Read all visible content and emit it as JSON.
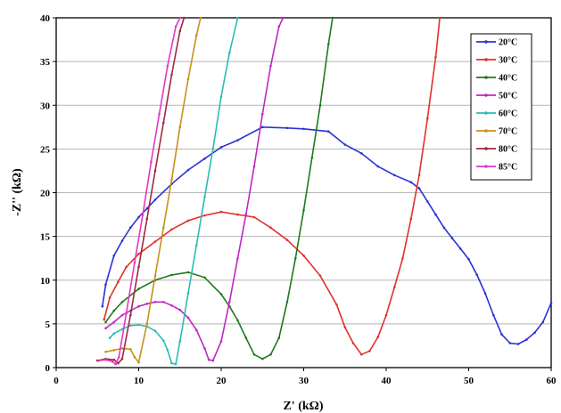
{
  "chart_data": {
    "type": "line",
    "title": "",
    "xlabel": "Z' (kΩ)",
    "ylabel": "-Z'' (kΩ)",
    "xlim": [
      0,
      60
    ],
    "ylim": [
      0,
      40
    ],
    "x_ticks": [
      "0",
      "10",
      "20",
      "30",
      "40",
      "50",
      "60"
    ],
    "y_ticks": [
      "0",
      "5",
      "10",
      "15",
      "20",
      "25",
      "30",
      "35",
      "40"
    ],
    "grid": "horizontal",
    "legend_position": "top-right",
    "series": [
      {
        "name": "20°C",
        "color": "#2a32d6",
        "x": [
          5.6,
          6,
          7,
          8,
          9,
          10,
          11,
          12,
          14,
          16,
          18,
          20,
          22,
          25,
          28,
          30,
          33,
          35,
          37,
          39,
          41,
          43,
          44,
          45,
          46,
          47,
          48,
          49,
          50,
          51,
          52,
          53,
          54,
          55,
          56,
          57,
          58,
          59,
          60
        ],
        "y": [
          7,
          9.5,
          12.8,
          14.5,
          16,
          17.2,
          18.2,
          19.2,
          21,
          22.6,
          23.9,
          25.2,
          26,
          27.5,
          27.4,
          27.3,
          27,
          25.5,
          24.5,
          23,
          22,
          21.2,
          20.5,
          19,
          17.5,
          16,
          14.8,
          13.6,
          12.4,
          10.6,
          8.5,
          6,
          3.8,
          2.8,
          2.7,
          3.2,
          4,
          5.2,
          7.4
        ]
      },
      {
        "name": "30°C",
        "color": "#e0312b",
        "x": [
          5.8,
          6.5,
          7.5,
          8.5,
          10,
          12,
          14,
          16,
          18,
          20,
          22,
          24,
          26,
          28,
          30,
          32,
          34,
          35,
          36,
          37,
          38,
          39,
          40,
          41,
          42,
          43,
          44,
          45,
          46,
          46.5
        ],
        "y": [
          5.5,
          8,
          9.8,
          11.5,
          13,
          14.4,
          15.8,
          16.8,
          17.4,
          17.8,
          17.5,
          17.2,
          16,
          14.6,
          12.8,
          10.5,
          7.2,
          4.6,
          2.8,
          1.5,
          1.9,
          3.5,
          6,
          9.2,
          12.5,
          17,
          22,
          28.5,
          35.5,
          40
        ]
      },
      {
        "name": "40°C",
        "color": "#1e7a1e",
        "x": [
          6,
          7,
          8,
          10,
          12,
          14,
          16,
          18,
          20,
          21,
          22,
          23,
          24,
          25,
          26,
          27,
          28,
          29,
          30,
          31,
          32,
          33,
          33.5
        ],
        "y": [
          5.2,
          6.5,
          7.5,
          9,
          10,
          10.6,
          10.9,
          10.3,
          8.4,
          7,
          5.4,
          3.4,
          1.5,
          1,
          1.5,
          3.4,
          7.5,
          12.5,
          18,
          24,
          30,
          37,
          40
        ]
      },
      {
        "name": "50°C",
        "color": "#c027c5",
        "x": [
          6,
          7,
          8,
          9,
          10,
          11,
          12,
          13,
          14,
          15,
          16,
          17,
          18,
          18.5,
          19,
          20,
          21,
          22,
          23,
          24,
          25,
          26,
          27,
          27.5
        ],
        "y": [
          4.5,
          5.2,
          6,
          6.5,
          7,
          7.3,
          7.5,
          7.5,
          7.1,
          6.6,
          5.7,
          4.3,
          2.2,
          0.9,
          0.8,
          3,
          7.5,
          12.5,
          17.5,
          23,
          29,
          34.5,
          39,
          40
        ]
      },
      {
        "name": "60°C",
        "color": "#2bbbb5",
        "x": [
          6.5,
          7,
          8,
          9,
          10,
          11,
          12,
          13,
          13.5,
          14,
          14.5,
          15,
          16,
          17,
          18,
          19,
          20,
          21,
          22
        ],
        "y": [
          3.4,
          3.9,
          4.4,
          4.8,
          4.9,
          4.7,
          4.2,
          3.1,
          2,
          0.5,
          0.4,
          3,
          8.5,
          14,
          19.5,
          25,
          31,
          36,
          40
        ]
      },
      {
        "name": "70°C",
        "color": "#c8901c",
        "x": [
          6,
          7,
          8,
          9,
          9.5,
          10,
          11,
          12,
          13,
          14,
          15,
          16,
          17,
          17.5
        ],
        "y": [
          1.8,
          2,
          2.2,
          2.1,
          1.2,
          0.6,
          5,
          10.5,
          16,
          21.5,
          27.5,
          33,
          38,
          40
        ]
      },
      {
        "name": "80°C",
        "color": "#9e2b3f",
        "x": [
          5,
          6,
          7,
          7.5,
          8,
          9,
          10,
          11,
          12,
          13,
          14,
          15,
          15.5
        ],
        "y": [
          0.8,
          1,
          0.9,
          0.5,
          1,
          6,
          11.5,
          17,
          22.5,
          28,
          33.5,
          38.5,
          40
        ]
      },
      {
        "name": "85°C",
        "color": "#e337c4",
        "x": [
          5.2,
          6,
          6.8,
          7.2,
          7.6,
          8.5,
          9.5,
          10.5,
          11.5,
          12.5,
          13.5,
          14.5,
          15
        ],
        "y": [
          0.8,
          0.9,
          0.7,
          0.4,
          1.2,
          6.2,
          12,
          17.5,
          23.5,
          29,
          34.5,
          39,
          40
        ]
      }
    ]
  }
}
